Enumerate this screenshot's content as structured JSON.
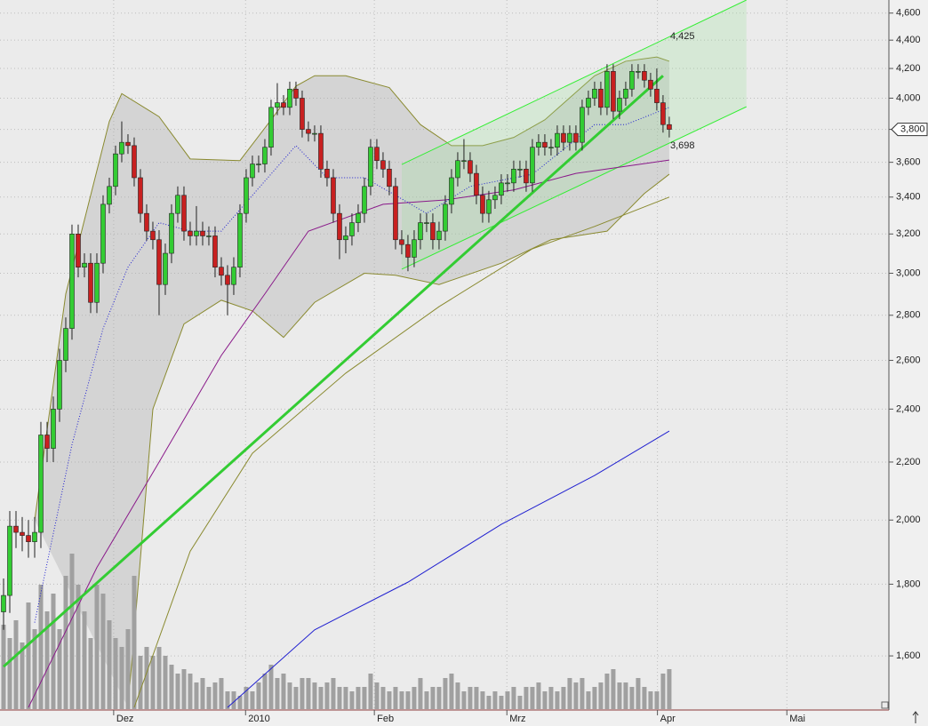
{
  "chart_data": {
    "type": "candlestick",
    "open": [
      1720,
      1767,
      1980,
      1960,
      1950,
      1930,
      1960,
      2300,
      2250,
      2400,
      2600,
      2740,
      3200,
      3030,
      3050,
      2860,
      3050,
      3360,
      3460,
      3650,
      3720,
      3700,
      3510,
      3310,
      3215,
      3170,
      2945,
      3100,
      3310,
      3410,
      3215,
      3190,
      3215,
      3190,
      3190,
      3030,
      2990,
      2945,
      3030,
      3310,
      3510,
      3590,
      3590,
      3690,
      3940,
      3970,
      3940,
      4060,
      4000,
      3800,
      3775,
      3775,
      3560,
      3510,
      3310,
      3170,
      3190,
      3260,
      3310,
      3460,
      3690,
      3610,
      3560,
      3460,
      3170,
      3145,
      3080,
      3170,
      3260,
      3260,
      3170,
      3215,
      3360,
      3510,
      3610,
      3610,
      3535,
      3410,
      3310,
      3385,
      3410,
      3480,
      3480,
      3560,
      3560,
      3480,
      3690,
      3720,
      3690,
      3690,
      3775,
      3720,
      3775,
      3720,
      3940,
      4000,
      4060,
      3940,
      4180,
      3915,
      4000,
      4060,
      4180,
      4180,
      4120,
      4060,
      3970,
      3830
    ],
    "high": [
      1817,
      2030,
      2030,
      2010,
      2000,
      2010,
      2350,
      2350,
      2450,
      2650,
      2790,
      3250,
      3250,
      3100,
      3100,
      3100,
      3410,
      3510,
      3700,
      3850,
      3770,
      3750,
      3560,
      3360,
      3265,
      3220,
      3150,
      3360,
      3460,
      3460,
      3265,
      3350,
      3265,
      3240,
      3240,
      3080,
      3040,
      3080,
      3360,
      3560,
      3640,
      3640,
      3740,
      3990,
      4100,
      4020,
      4110,
      4110,
      4050,
      3850,
      3825,
      3825,
      3610,
      3560,
      3360,
      3240,
      3310,
      3360,
      3510,
      3740,
      3740,
      3660,
      3610,
      3510,
      3220,
      3195,
      3220,
      3310,
      3310,
      3310,
      3265,
      3410,
      3560,
      3660,
      3740,
      3660,
      3585,
      3460,
      3435,
      3460,
      3530,
      3530,
      3610,
      3610,
      3610,
      3740,
      3770,
      3770,
      3740,
      3825,
      3825,
      3825,
      3825,
      3990,
      4050,
      4110,
      4110,
      4230,
      4230,
      4050,
      4110,
      4230,
      4230,
      4230,
      4170,
      4200,
      4020,
      3880
    ],
    "low": [
      1670,
      1717,
      1910,
      1900,
      1880,
      1880,
      1910,
      2200,
      2200,
      2350,
      2550,
      2690,
      2980,
      2980,
      2810,
      2810,
      3000,
      3310,
      3410,
      3600,
      3650,
      3460,
      3260,
      3165,
      3120,
      2800,
      2895,
      3050,
      3260,
      3165,
      3140,
      3140,
      3140,
      3140,
      2980,
      2940,
      2800,
      2895,
      2980,
      3260,
      3460,
      3540,
      3540,
      3640,
      3890,
      3890,
      3890,
      3950,
      3750,
      3725,
      3725,
      3510,
      3460,
      3260,
      3070,
      3100,
      3140,
      3210,
      3260,
      3410,
      3560,
      3510,
      3410,
      3120,
      3095,
      3010,
      3030,
      3120,
      3210,
      3120,
      3120,
      3165,
      3310,
      3460,
      3560,
      3485,
      3360,
      3260,
      3260,
      3335,
      3360,
      3430,
      3430,
      3510,
      3430,
      3430,
      3640,
      3640,
      3640,
      3640,
      3670,
      3670,
      3670,
      3670,
      3890,
      3950,
      3890,
      3890,
      3865,
      3865,
      3950,
      4010,
      4130,
      4070,
      4010,
      3920,
      3780,
      3750
    ],
    "close": [
      1767,
      1980,
      1960,
      1950,
      1930,
      1960,
      2300,
      2250,
      2400,
      2600,
      2740,
      3200,
      3030,
      3050,
      2860,
      3050,
      3360,
      3460,
      3650,
      3720,
      3700,
      3510,
      3310,
      3215,
      3170,
      2945,
      3100,
      3310,
      3410,
      3215,
      3190,
      3215,
      3190,
      3190,
      3030,
      2990,
      2945,
      3030,
      3310,
      3510,
      3590,
      3590,
      3690,
      3940,
      3970,
      3940,
      4060,
      4000,
      3800,
      3775,
      3775,
      3560,
      3510,
      3310,
      3170,
      3190,
      3260,
      3310,
      3460,
      3690,
      3610,
      3560,
      3460,
      3170,
      3145,
      3080,
      3170,
      3260,
      3260,
      3170,
      3215,
      3360,
      3510,
      3610,
      3610,
      3535,
      3410,
      3310,
      3385,
      3410,
      3480,
      3480,
      3560,
      3560,
      3480,
      3690,
      3720,
      3690,
      3690,
      3775,
      3720,
      3775,
      3720,
      3940,
      4000,
      4060,
      3940,
      4180,
      3915,
      4000,
      4060,
      4180,
      4180,
      4120,
      4060,
      3970,
      3830,
      3800
    ],
    "volume": [
      95,
      80,
      100,
      75,
      120,
      90,
      140,
      110,
      130,
      90,
      150,
      175,
      140,
      110,
      80,
      140,
      130,
      100,
      80,
      70,
      90,
      150,
      60,
      70,
      60,
      70,
      60,
      50,
      40,
      45,
      40,
      30,
      35,
      25,
      30,
      35,
      20,
      20,
      15,
      25,
      20,
      30,
      40,
      50,
      35,
      40,
      30,
      25,
      35,
      35,
      30,
      25,
      30,
      35,
      25,
      25,
      20,
      25,
      25,
      40,
      30,
      25,
      20,
      25,
      20,
      20,
      25,
      35,
      20,
      25,
      25,
      35,
      40,
      30,
      20,
      25,
      25,
      20,
      15,
      20,
      15,
      20,
      25,
      15,
      25,
      25,
      30,
      20,
      25,
      20,
      25,
      35,
      30,
      35,
      20,
      25,
      30,
      40,
      45,
      30,
      30,
      25,
      35,
      25,
      20,
      20,
      40,
      45
    ],
    "volume_lim": [
      0,
      200
    ],
    "volume_color": "#a0a0a0",
    "colors": {
      "up": "#33cc33",
      "down": "#c82020"
    },
    "log_scale": true,
    "ylim": [
      1466,
      4700
    ],
    "yticks": [
      {
        "value": 1600,
        "label": "1,600"
      },
      {
        "value": 1800,
        "label": "1,800"
      },
      {
        "value": 2000,
        "label": "2,000"
      },
      {
        "value": 2200,
        "label": "2,200"
      },
      {
        "value": 2400,
        "label": "2,400"
      },
      {
        "value": 2600,
        "label": "2,600"
      },
      {
        "value": 2800,
        "label": "2,800"
      },
      {
        "value": 3000,
        "label": "3,000"
      },
      {
        "value": 3200,
        "label": "3,200"
      },
      {
        "value": 3400,
        "label": "3,400"
      },
      {
        "value": 3600,
        "label": "3,600"
      },
      {
        "value": 3800,
        "label": "3,800"
      },
      {
        "value": 4000,
        "label": "4,000"
      },
      {
        "value": 4200,
        "label": "4,200"
      },
      {
        "value": 4400,
        "label": "4,400"
      },
      {
        "value": 4600,
        "label": "4,600"
      }
    ],
    "xlim": [
      -0.57,
      142.3
    ],
    "xticks": [
      {
        "value": 17.7,
        "label": "Dez"
      },
      {
        "value": 38.9,
        "label": "2010"
      },
      {
        "value": 59.6,
        "label": "Feb"
      },
      {
        "value": 80.9,
        "label": "Mrz"
      },
      {
        "value": 105.1,
        "label": "Apr"
      },
      {
        "value": 125.9,
        "label": "Mai"
      }
    ],
    "grid": true,
    "bollinger": {
      "color": "#8a8a30",
      "fill": "rgba(170,170,170,0.35)",
      "upper": {
        "x": [
          5,
          10,
          17,
          19,
          25,
          30,
          38,
          43,
          47,
          50,
          55,
          62,
          67,
          72,
          77,
          82,
          87,
          95,
          100,
          105,
          107
        ],
        "values": [
          2000,
          2900,
          3850,
          4030,
          3880,
          3620,
          3610,
          3860,
          4080,
          4150,
          4150,
          4070,
          3830,
          3700,
          3700,
          3750,
          3860,
          4150,
          4250,
          4280,
          4250
        ]
      },
      "lower": {
        "x": [
          20,
          24,
          29,
          35,
          40,
          45,
          50,
          58,
          63,
          70,
          80,
          88,
          97,
          103,
          107
        ],
        "values": [
          1470,
          2400,
          2760,
          2870,
          2820,
          2700,
          2860,
          3000,
          2990,
          2945,
          3050,
          3170,
          3215,
          3420,
          3530
        ]
      }
    },
    "lines": [
      {
        "color": "#2020d0",
        "width": 1,
        "dash": false,
        "x": [
          36,
          50,
          65,
          80,
          95,
          107
        ],
        "values": [
          1470,
          1670,
          1806,
          1986,
          2152,
          2315
        ]
      },
      {
        "color": "#8a8a30",
        "width": 1,
        "dash": false,
        "x": [
          21,
          30,
          40,
          55,
          70,
          85,
          95,
          107
        ],
        "values": [
          1470,
          1900,
          2232,
          2546,
          2840,
          3123,
          3240,
          3400
        ]
      },
      {
        "color": "#8a1a8a",
        "width": 1,
        "dash": false,
        "x": [
          4,
          15,
          25,
          35,
          42,
          49,
          61,
          71,
          82,
          92,
          107
        ],
        "values": [
          1470,
          1850,
          2200,
          2621,
          2900,
          3215,
          3360,
          3384,
          3440,
          3535,
          3613
        ]
      },
      {
        "color": "#2020d0",
        "width": 1,
        "dash": true,
        "x": [
          5,
          11,
          16,
          20,
          25,
          30,
          35,
          40,
          47,
          52,
          58,
          63,
          68,
          75,
          85,
          95,
          100,
          107
        ],
        "values": [
          1690,
          2264,
          2740,
          3030,
          3260,
          3215,
          3215,
          3410,
          3700,
          3510,
          3510,
          3410,
          3310,
          3460,
          3530,
          3830,
          3830,
          3940
        ]
      },
      {
        "color": "#33cc33",
        "width": 3,
        "dash": false,
        "x": [
          0,
          106
        ],
        "values": [
          1572,
          4150
        ]
      }
    ],
    "channel": {
      "color": "#33ee33",
      "fill": "rgba(150,225,150,0.25)",
      "upper": {
        "x": [
          64,
          119.4
        ],
        "values": [
          3587,
          4700
        ]
      },
      "lower": {
        "x": [
          64,
          119.4
        ],
        "values": [
          3020,
          3944
        ]
      }
    },
    "annotations": [
      {
        "value": 4425,
        "label": "4,425"
      },
      {
        "value": 3698,
        "label": "3,698"
      }
    ],
    "last_price": {
      "value": 3800,
      "label": "3,800"
    }
  }
}
